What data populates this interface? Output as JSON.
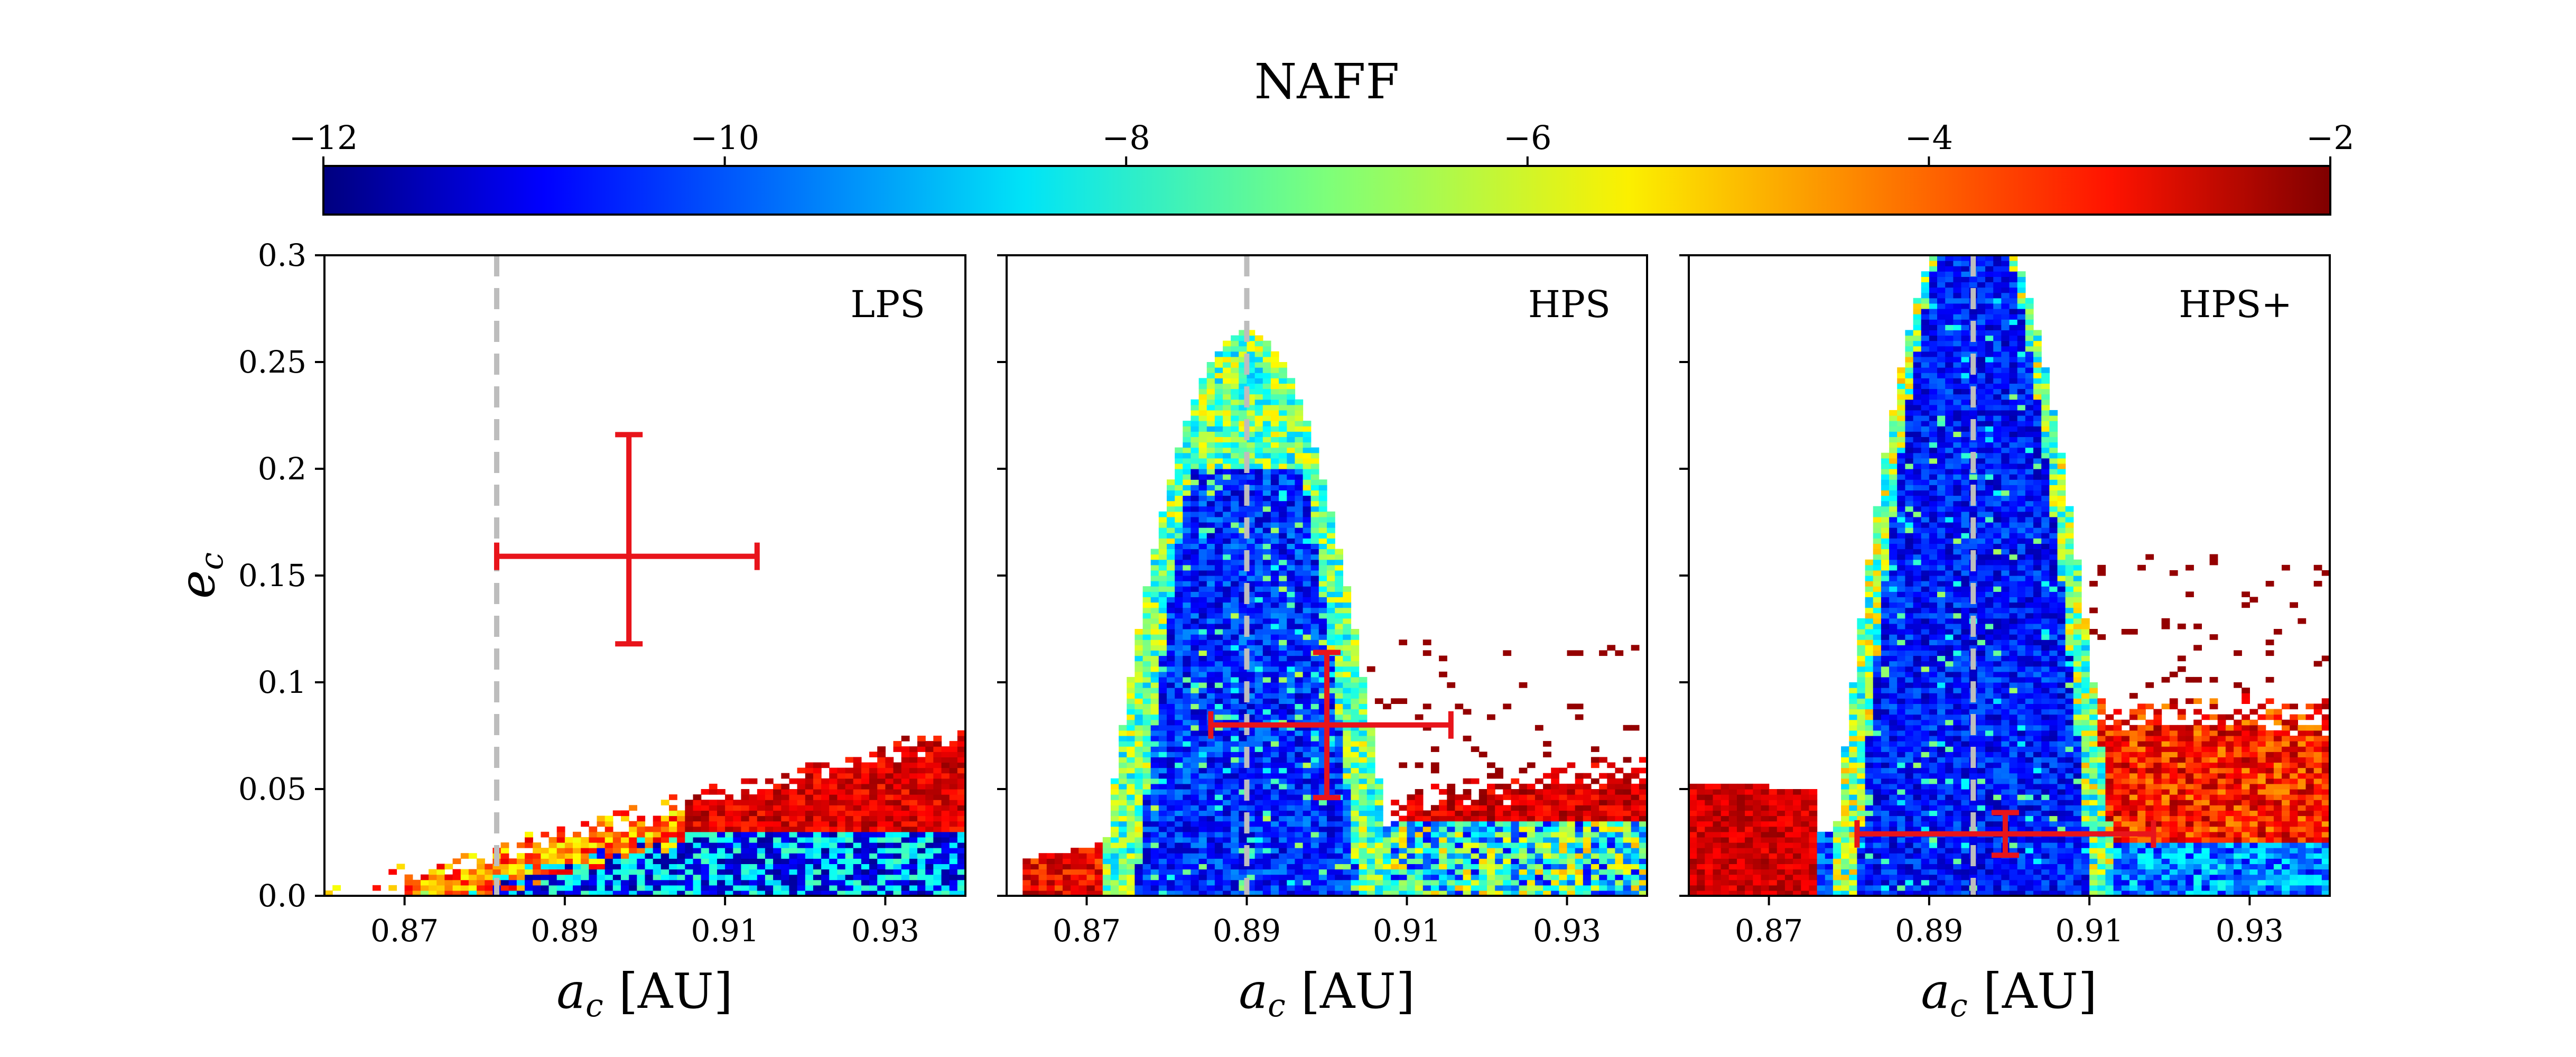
{
  "colorbar": {
    "label": "NAFF",
    "ticks": [
      "−12",
      "−10",
      "−8",
      "−6",
      "−4",
      "−2"
    ],
    "range": [
      -12,
      -2
    ],
    "colormap": "jet"
  },
  "chart_data": [
    {
      "type": "heatmap",
      "label": "LPS",
      "xlabel_var": "a",
      "xlabel_sub": "c",
      "xlabel_unit": "[AU]",
      "ylabel_var": "e",
      "ylabel_sub": "c",
      "xlim": [
        0.86,
        0.94
      ],
      "ylim": [
        0.0,
        0.3
      ],
      "xticks": [
        "0.87",
        "0.89",
        "0.91",
        "0.93"
      ],
      "yticks": [
        "0.0",
        "0.05",
        "0.1",
        "0.15",
        "0.2",
        "0.25",
        "0.3"
      ],
      "dashed_line_x": 0.8815,
      "errorbar": {
        "x": 0.898,
        "y": 0.159,
        "xerr_low": 0.0165,
        "xerr_high": 0.016,
        "yerr_low": 0.041,
        "yerr_high": 0.057
      }
    },
    {
      "type": "heatmap",
      "label": "HPS",
      "xlabel_var": "a",
      "xlabel_sub": "c",
      "xlabel_unit": "[AU]",
      "xlim": [
        0.86,
        0.94
      ],
      "ylim": [
        0.0,
        0.3
      ],
      "xticks": [
        "0.87",
        "0.89",
        "0.91",
        "0.93"
      ],
      "dashed_line_x": 0.89,
      "errorbar": {
        "x": 0.9,
        "y": 0.08,
        "xerr_low": 0.0145,
        "xerr_high": 0.0155,
        "yerr_low": 0.034,
        "yerr_high": 0.034
      }
    },
    {
      "type": "heatmap",
      "label": "HPS+",
      "xlabel_var": "a",
      "xlabel_sub": "c",
      "xlabel_unit": "[AU]",
      "xlim": [
        0.86,
        0.94
      ],
      "ylim": [
        0.0,
        0.3
      ],
      "xticks": [
        "0.87",
        "0.89",
        "0.91",
        "0.93"
      ],
      "dashed_line_x": 0.8955,
      "errorbar": {
        "x": 0.8995,
        "y": 0.029,
        "xerr_low": 0.0185,
        "xerr_high": 0.0185,
        "yerr_low": 0.01,
        "yerr_high": 0.01
      }
    }
  ]
}
